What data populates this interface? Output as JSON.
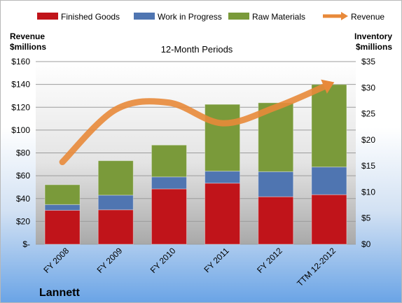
{
  "chart_data": {
    "type": "bar",
    "subtitle": "12-Month Periods",
    "company": "Lannett",
    "categories": [
      "FY 2008",
      "FY 2009",
      "FY 2010",
      "FY 2011",
      "FY 2012",
      "TTM 12-2012"
    ],
    "left_axis_label": [
      "Revenue",
      "$millions"
    ],
    "right_axis_label": [
      "Inventory",
      "$millions"
    ],
    "left_axis": {
      "min": 0,
      "max": 160,
      "ticks": [
        "$-",
        "$20",
        "$40",
        "$60",
        "$80",
        "$100",
        "$120",
        "$140",
        "$160"
      ]
    },
    "right_axis": {
      "min": 0,
      "max": 35,
      "ticks": [
        "$0",
        "$5",
        "$10",
        "$15",
        "$20",
        "$25",
        "$30",
        "$35"
      ]
    },
    "stacked": true,
    "series": [
      {
        "name": "Finished Goods",
        "axis": "right",
        "color": "#c0141a",
        "values": [
          6.5,
          6.6,
          10.6,
          11.7,
          9.1,
          9.5
        ]
      },
      {
        "name": "Work in Progress",
        "axis": "right",
        "color": "#4f75b1",
        "values": [
          1.1,
          2.8,
          2.3,
          2.3,
          4.8,
          5.3
        ]
      },
      {
        "name": "Raw Materials",
        "axis": "right",
        "color": "#7a9a3a",
        "values": [
          3.8,
          6.6,
          6.1,
          12.8,
          13.2,
          15.8
        ]
      }
    ],
    "line_series": {
      "name": "Revenue",
      "axis": "left",
      "color": "#e8893a",
      "values": [
        72,
        118,
        124,
        106,
        120,
        140
      ]
    },
    "legend": [
      {
        "name": "Finished Goods",
        "color": "#c0141a",
        "kind": "swatch"
      },
      {
        "name": "Work in Progress",
        "color": "#4f75b1",
        "kind": "swatch"
      },
      {
        "name": "Raw Materials",
        "color": "#7a9a3a",
        "kind": "swatch"
      },
      {
        "name": "Revenue",
        "color": "#e8893a",
        "kind": "arrow"
      }
    ],
    "legend_position": "top",
    "gridlines": true
  }
}
